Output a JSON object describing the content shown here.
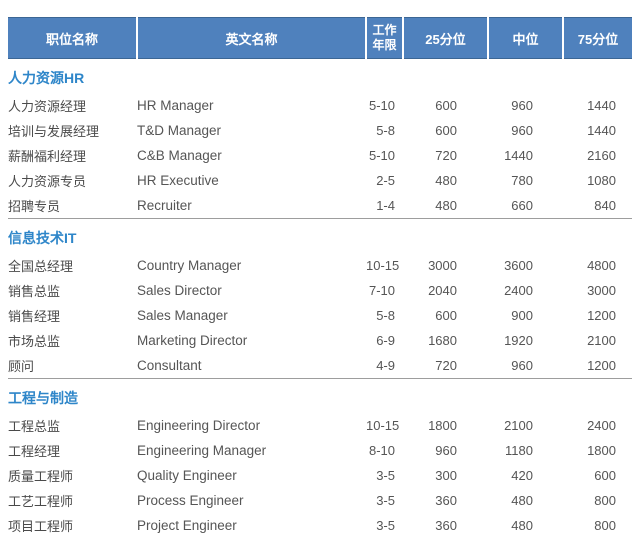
{
  "table": {
    "header": {
      "position": "职位名称",
      "english": "英文名称",
      "years_line1": "工作",
      "years_line2": "年限",
      "p25": "25分位",
      "p50": "中位",
      "p75": "75分位"
    },
    "sections": [
      {
        "title": "人力资源HR",
        "rows": [
          {
            "position": "人力资源经理",
            "english": "HR Manager",
            "years": "5-10",
            "p25": "600",
            "p50": "960",
            "p75": "1440"
          },
          {
            "position": "培训与发展经理",
            "english": "T&D Manager",
            "years": "5-8",
            "p25": "600",
            "p50": "960",
            "p75": "1440"
          },
          {
            "position": "薪酬福利经理",
            "english": "C&B Manager",
            "years": "5-10",
            "p25": "720",
            "p50": "1440",
            "p75": "2160"
          },
          {
            "position": "人力资源专员",
            "english": "HR Executive",
            "years": "2-5",
            "p25": "480",
            "p50": "780",
            "p75": "1080"
          },
          {
            "position": "招聘专员",
            "english": "Recruiter",
            "years": "1-4",
            "p25": "480",
            "p50": "660",
            "p75": "840"
          }
        ]
      },
      {
        "title": "信息技术IT",
        "rows": [
          {
            "position": "全国总经理",
            "english": "Country Manager",
            "years": "10-15",
            "p25": "3000",
            "p50": "3600",
            "p75": "4800"
          },
          {
            "position": "销售总监",
            "english": "Sales Director",
            "years": "7-10",
            "p25": "2040",
            "p50": "2400",
            "p75": "3000"
          },
          {
            "position": "销售经理",
            "english": "Sales Manager",
            "years": "5-8",
            "p25": "600",
            "p50": "900",
            "p75": "1200"
          },
          {
            "position": "市场总监",
            "english": "Marketing Director",
            "years": "6-9",
            "p25": "1680",
            "p50": "1920",
            "p75": "2100"
          },
          {
            "position": "顾问",
            "english": "Consultant",
            "years": "4-9",
            "p25": "720",
            "p50": "960",
            "p75": "1200"
          }
        ]
      },
      {
        "title": "工程与制造",
        "rows": [
          {
            "position": "工程总监",
            "english": "Engineering Director",
            "years": "10-15",
            "p25": "1800",
            "p50": "2100",
            "p75": "2400"
          },
          {
            "position": "工程经理",
            "english": "Engineering Manager",
            "years": "8-10",
            "p25": "960",
            "p50": "1180",
            "p75": "1800"
          },
          {
            "position": "质量工程师",
            "english": "Quality Engineer",
            "years": "3-5",
            "p25": "300",
            "p50": "420",
            "p75": "600"
          },
          {
            "position": "工艺工程师",
            "english": "Process Engineer",
            "years": "3-5",
            "p25": "360",
            "p50": "480",
            "p75": "800"
          },
          {
            "position": "项目工程师",
            "english": "Project Engineer",
            "years": "3-5",
            "p25": "360",
            "p50": "480",
            "p75": "800"
          }
        ]
      }
    ]
  },
  "colors": {
    "header_bg": "#4f81bd",
    "header_text": "#ffffff",
    "header_edge": "#3c6694",
    "section_title_text": "#2e86c9",
    "body_text": "#555555",
    "separator_line": "#9d9d9d"
  }
}
